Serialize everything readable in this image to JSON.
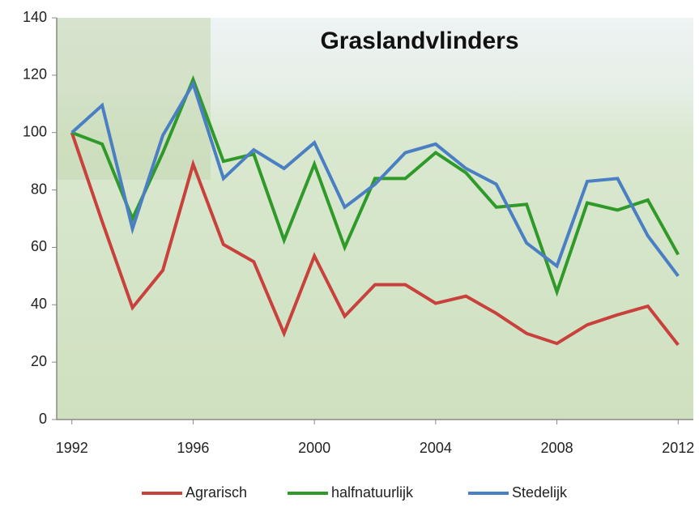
{
  "chart_data": {
    "type": "line",
    "title": "Graslandvlinders",
    "x": [
      1992,
      1993,
      1994,
      1995,
      1996,
      1997,
      1998,
      1999,
      2000,
      2001,
      2002,
      2003,
      2004,
      2005,
      2006,
      2007,
      2008,
      2009,
      2010,
      2011,
      2012
    ],
    "series": [
      {
        "name": "Agrarisch",
        "color": "#c9413d",
        "values": [
          100,
          69,
          39,
          52,
          89,
          61,
          55,
          30,
          57,
          36,
          47,
          47,
          40.5,
          43,
          37,
          30,
          26.5,
          33,
          36.5,
          39.5,
          26
        ]
      },
      {
        "name": "halfnatuurlijk",
        "color": "#2f9a2a",
        "values": [
          100,
          96,
          70,
          93,
          118.5,
          90,
          92.5,
          62.5,
          89,
          60,
          84,
          84,
          93,
          86,
          74,
          75,
          44.5,
          75.5,
          73,
          76.5,
          57.5
        ]
      },
      {
        "name": "Stedelijk",
        "color": "#4a7fc4",
        "values": [
          100,
          109.5,
          66.5,
          99,
          117,
          84,
          94,
          87.5,
          96.5,
          74,
          82,
          93,
          96,
          87.5,
          82,
          61.5,
          53.5,
          83,
          84,
          64,
          50
        ]
      }
    ],
    "xlim": [
      1991.5,
      2012.5
    ],
    "xticks": [
      1992,
      1996,
      2000,
      2004,
      2008,
      2012
    ],
    "ylim": [
      0,
      140
    ],
    "yticks": [
      0,
      20,
      40,
      60,
      80,
      100,
      120,
      140
    ],
    "legend": "bottom"
  }
}
